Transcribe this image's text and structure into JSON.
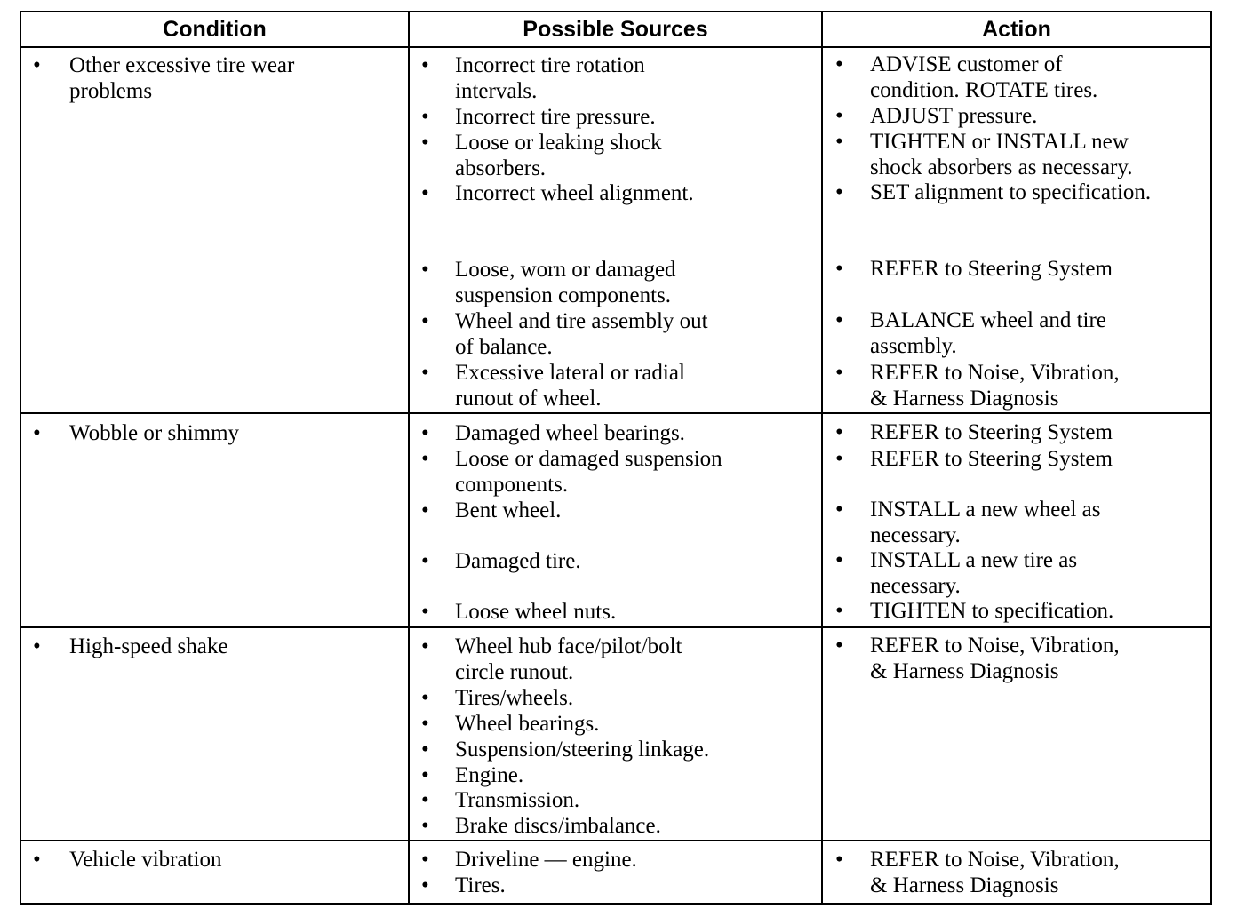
{
  "table": {
    "header": [
      "Condition",
      "Possible Sources",
      "Action"
    ],
    "rows": [
      {
        "condition": [
          "Other excessive tire wear",
          "problems"
        ],
        "sources": [
          [
            "Incorrect tire rotation",
            "intervals."
          ],
          [
            "Incorrect tire pressure."
          ],
          [
            "Loose or leaking shock",
            "absorbers."
          ],
          [
            "Incorrect wheel alignment."
          ],
          [
            "Loose, worn or damaged",
            "suspension components."
          ],
          [
            "Wheel and tire assembly out",
            "of balance."
          ],
          [
            "Excessive lateral or radial",
            "runout of wheel."
          ]
        ],
        "actions": [
          [
            "ADVISE customer of",
            "condition. ROTATE tires."
          ],
          [
            "ADJUST pressure."
          ],
          [
            "TIGHTEN or INSTALL new",
            "shock absorbers as necessary."
          ],
          [
            "SET alignment to specification."
          ],
          [
            "REFER to  Steering System"
          ],
          [
            "BALANCE wheel and tire",
            "assembly."
          ],
          [
            "REFER to Noise, Vibration,",
            "& Harness Diagnosis"
          ]
        ]
      },
      {
        "condition": [
          "Wobble or shimmy"
        ],
        "sources": [
          [
            "Damaged wheel bearings."
          ],
          [
            "Loose or damaged suspension",
            "components."
          ],
          [
            "Bent wheel."
          ],
          [
            "Damaged tire."
          ],
          [
            "Loose wheel nuts."
          ]
        ],
        "actions": [
          [
            "REFER to Steering System"
          ],
          [
            "REFER to Steering System"
          ],
          [
            "INSTALL a new wheel as",
            "necessary."
          ],
          [
            "INSTALL a new tire as",
            "necessary."
          ],
          [
            "TIGHTEN to specification."
          ]
        ]
      },
      {
        "condition": [
          "High-speed shake"
        ],
        "sources": [
          [
            "Wheel hub face/pilot/bolt",
            "circle runout."
          ],
          [
            "Tires/wheels."
          ],
          [
            "Wheel bearings."
          ],
          [
            "Suspension/steering linkage."
          ],
          [
            "Engine."
          ],
          [
            "Transmission."
          ],
          [
            "Brake discs/imbalance."
          ]
        ],
        "actions": [
          [
            "REFER to Noise, Vibration,",
            "& Harness Diagnosis"
          ]
        ]
      },
      {
        "condition": [
          "Vehicle vibration"
        ],
        "sources": [
          [
            "Driveline — engine."
          ],
          [
            "Tires."
          ]
        ],
        "actions": [
          [
            "REFER to Noise, Vibration,",
            "& Harness Diagnosis"
          ]
        ]
      }
    ]
  }
}
